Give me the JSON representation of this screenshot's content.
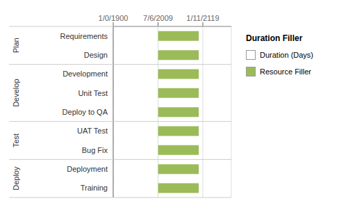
{
  "chart_data": {
    "type": "bar",
    "orientation": "horizontal",
    "stacked": true,
    "categories": [
      "Requirements",
      "Design",
      "Development",
      "Unit Test",
      "Deploy to QA",
      "UAT Test",
      "Bug Fix",
      "Deployment",
      "Training"
    ],
    "series": [
      {
        "name": "Duration (Days)",
        "color": "#ffffff",
        "values": [
          110,
          110,
          110,
          110,
          110,
          110,
          110,
          110,
          110
        ]
      },
      {
        "name": "Resource Filler",
        "color": "#9bbb59",
        "values": [
          100,
          100,
          100,
          100,
          100,
          100,
          100,
          100,
          100
        ]
      }
    ],
    "xlim": [
      0,
      290
    ],
    "xticks": [
      {
        "value": 0,
        "label": "1/0/1900"
      },
      {
        "value": 110,
        "label": "7/6/2009"
      },
      {
        "value": 220,
        "label": "1/11/2119"
      }
    ],
    "grid": true,
    "legend": "right",
    "legend_title": "Duration Filler",
    "groups": [
      {
        "label": "Plan",
        "categories": [
          "Requirements",
          "Design"
        ]
      },
      {
        "label": "Develop",
        "categories": [
          "Development",
          "Unit Test",
          "Deploy to QA"
        ]
      },
      {
        "label": "Test",
        "categories": [
          "UAT Test",
          "Bug Fix"
        ]
      },
      {
        "label": "Deploy",
        "categories": [
          "Deployment",
          "Training"
        ]
      }
    ]
  }
}
